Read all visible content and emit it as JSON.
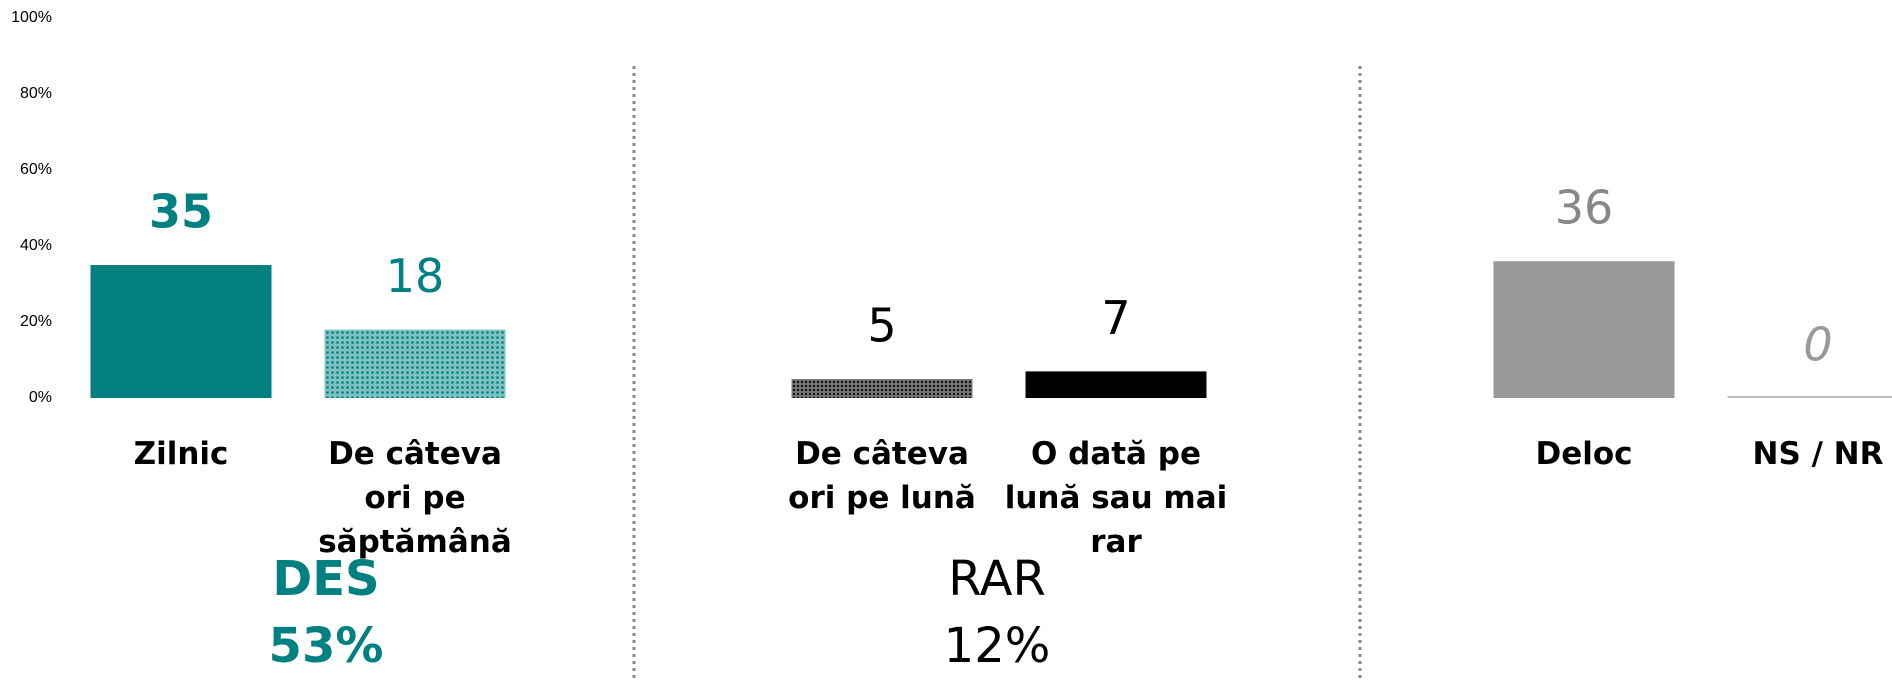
{
  "chart_data": {
    "type": "bar",
    "categories": [
      "Zilnic",
      "De câteva ori pe săptămână",
      "De câteva ori pe lună",
      "O dată pe lună sau mai rar",
      "Deloc",
      "NS / NR"
    ],
    "values": [
      35,
      18,
      5,
      7,
      36,
      0
    ],
    "colors": [
      "#008080",
      "#008080",
      "#333333",
      "#000000",
      "#999999",
      "#bfbfbf"
    ],
    "patterns": [
      false,
      true,
      true,
      false,
      false,
      false
    ],
    "ylim": [
      0,
      100
    ],
    "yticks": [
      {
        "value": 0,
        "label": "0%"
      },
      {
        "value": 20,
        "label": "20%"
      },
      {
        "value": 40,
        "label": "40%"
      },
      {
        "value": 60,
        "label": "60%"
      },
      {
        "value": 80,
        "label": "80%"
      },
      {
        "value": 100,
        "label": "100%"
      }
    ],
    "groups": [
      {
        "name": "DES",
        "total": "53%"
      },
      {
        "name": "RAR",
        "total": "12%"
      }
    ]
  }
}
